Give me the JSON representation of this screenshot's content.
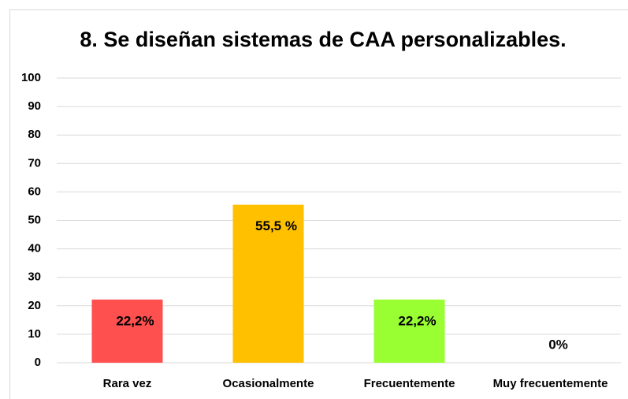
{
  "chart_data": {
    "type": "bar",
    "title": "8. Se diseñan sistemas de CAA personalizables.",
    "categories": [
      "Rara vez",
      "Ocasionalmente",
      "Frecuentemente",
      "Muy frecuentemente"
    ],
    "values": [
      22.2,
      55.5,
      22.2,
      0
    ],
    "value_labels": [
      "22,2%",
      "55,5 %",
      "22,2%",
      "0%"
    ],
    "colors": [
      "#ff5050",
      "#ffc000",
      "#99ff33",
      "#5b9bd5"
    ],
    "ylim": [
      0,
      100
    ],
    "yticks": [
      0,
      10,
      20,
      30,
      40,
      50,
      60,
      70,
      80,
      90,
      100
    ],
    "grid": true
  }
}
